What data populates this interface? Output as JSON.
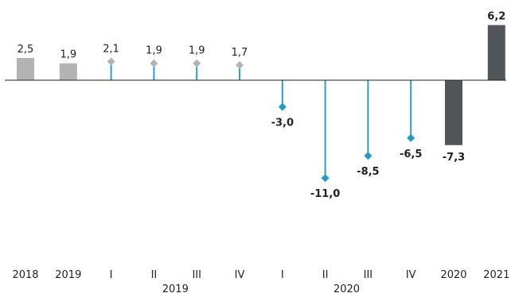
{
  "chart_data": {
    "type": "bar",
    "title": "",
    "xlabel": "",
    "ylabel": "",
    "ylim": [
      -14,
      7
    ],
    "grid": false,
    "categories": [
      "2018",
      "2019",
      "I",
      "II",
      "III",
      "IV",
      "I",
      "II",
      "III",
      "IV",
      "2020",
      "2021"
    ],
    "group_labels": [
      {
        "label": "2019",
        "span": [
          2,
          5
        ]
      },
      {
        "label": "2020",
        "span": [
          6,
          9
        ]
      }
    ],
    "values": [
      2.5,
      1.9,
      2.1,
      1.9,
      1.9,
      1.7,
      -3.0,
      -11.0,
      -8.5,
      -6.5,
      -7.3,
      6.2
    ],
    "value_labels": [
      "2,5",
      "1,9",
      "2,1",
      "1,9",
      "1,9",
      "1,7",
      "-3,0",
      "-11,0",
      "-8,5",
      "-6,5",
      "-7,3",
      "6,2"
    ],
    "mark_types": [
      "bar",
      "bar",
      "lollipop",
      "lollipop",
      "lollipop",
      "lollipop",
      "lollipop",
      "lollipop",
      "lollipop",
      "lollipop",
      "bar",
      "bar"
    ],
    "bold_labels": [
      false,
      false,
      false,
      false,
      false,
      false,
      true,
      true,
      true,
      true,
      true,
      true
    ],
    "colors": {
      "bar_past": "#b3b3b3",
      "bar_dark": "#525659",
      "stem": "#2a9fd0",
      "marker_past": "#b3b3b3",
      "marker_new": "#1f9cc8",
      "zero_line": "#222222"
    },
    "mark_colors": [
      "bar_past",
      "bar_past",
      "stem",
      "stem",
      "stem",
      "stem",
      "stem",
      "stem",
      "stem",
      "stem",
      "bar_dark",
      "bar_dark"
    ],
    "marker_colors": [
      "",
      "",
      "marker_past",
      "marker_past",
      "marker_past",
      "marker_past",
      "marker_new",
      "marker_new",
      "marker_new",
      "marker_new",
      "",
      ""
    ]
  }
}
